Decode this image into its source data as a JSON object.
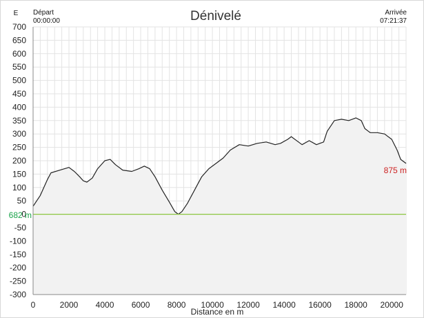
{
  "header": {
    "title": "Dénivelé",
    "unit_label": "E",
    "start_label": "Départ",
    "start_time": "00:00:00",
    "end_label": "Arrivée",
    "end_time": "07:21:37"
  },
  "colors": {
    "profile_line": "#222222",
    "profile_fill": "#f2f2f2",
    "grid": "#e3e3e3",
    "reference_line": "#8cc63f",
    "reference_label": "#1aa34a",
    "end_label": "#cc1f1f"
  },
  "annotations": {
    "start_altitude": "682 m",
    "end_altitude": "875 m"
  },
  "chart_data": {
    "type": "area",
    "title": "Dénivelé",
    "xlabel": "Distance en m",
    "ylabel": "",
    "xlim": [
      0,
      20800
    ],
    "ylim": [
      -300,
      700
    ],
    "grid": true,
    "x_ticks": [
      0,
      2000,
      4000,
      6000,
      8000,
      10000,
      12000,
      14000,
      16000,
      18000,
      20000
    ],
    "y_ticks": [
      700,
      650,
      600,
      550,
      500,
      450,
      400,
      350,
      300,
      250,
      200,
      150,
      100,
      50,
      0,
      -50,
      -100,
      -150,
      -200,
      -250,
      -300
    ],
    "reference_y": 0,
    "series": [
      {
        "x": [
          0,
          200,
          400,
          600,
          800,
          1000,
          1500,
          2000,
          2300,
          2600,
          2800,
          3000,
          3300,
          3600,
          4000,
          4300,
          4600,
          5000,
          5500,
          5900,
          6200,
          6500,
          6800,
          7200,
          7600,
          7900,
          8100,
          8300,
          8600,
          9000,
          9400,
          9800,
          10200,
          10600,
          11000,
          11500,
          12000,
          12500,
          13000,
          13500,
          13800,
          14200,
          14400,
          14800,
          15000,
          15400,
          15800,
          16200,
          16400,
          16800,
          17200,
          17600,
          18000,
          18300,
          18500,
          18800,
          19200,
          19600,
          20000,
          20300,
          20500,
          20800
        ],
        "y": [
          30,
          50,
          70,
          100,
          130,
          155,
          165,
          175,
          160,
          140,
          125,
          120,
          135,
          170,
          200,
          205,
          185,
          165,
          160,
          170,
          180,
          170,
          140,
          90,
          45,
          10,
          0,
          10,
          40,
          90,
          140,
          170,
          190,
          210,
          240,
          260,
          255,
          265,
          270,
          260,
          265,
          280,
          290,
          270,
          260,
          275,
          260,
          270,
          310,
          350,
          355,
          350,
          360,
          350,
          320,
          305,
          305,
          300,
          280,
          240,
          205,
          190
        ]
      }
    ]
  }
}
